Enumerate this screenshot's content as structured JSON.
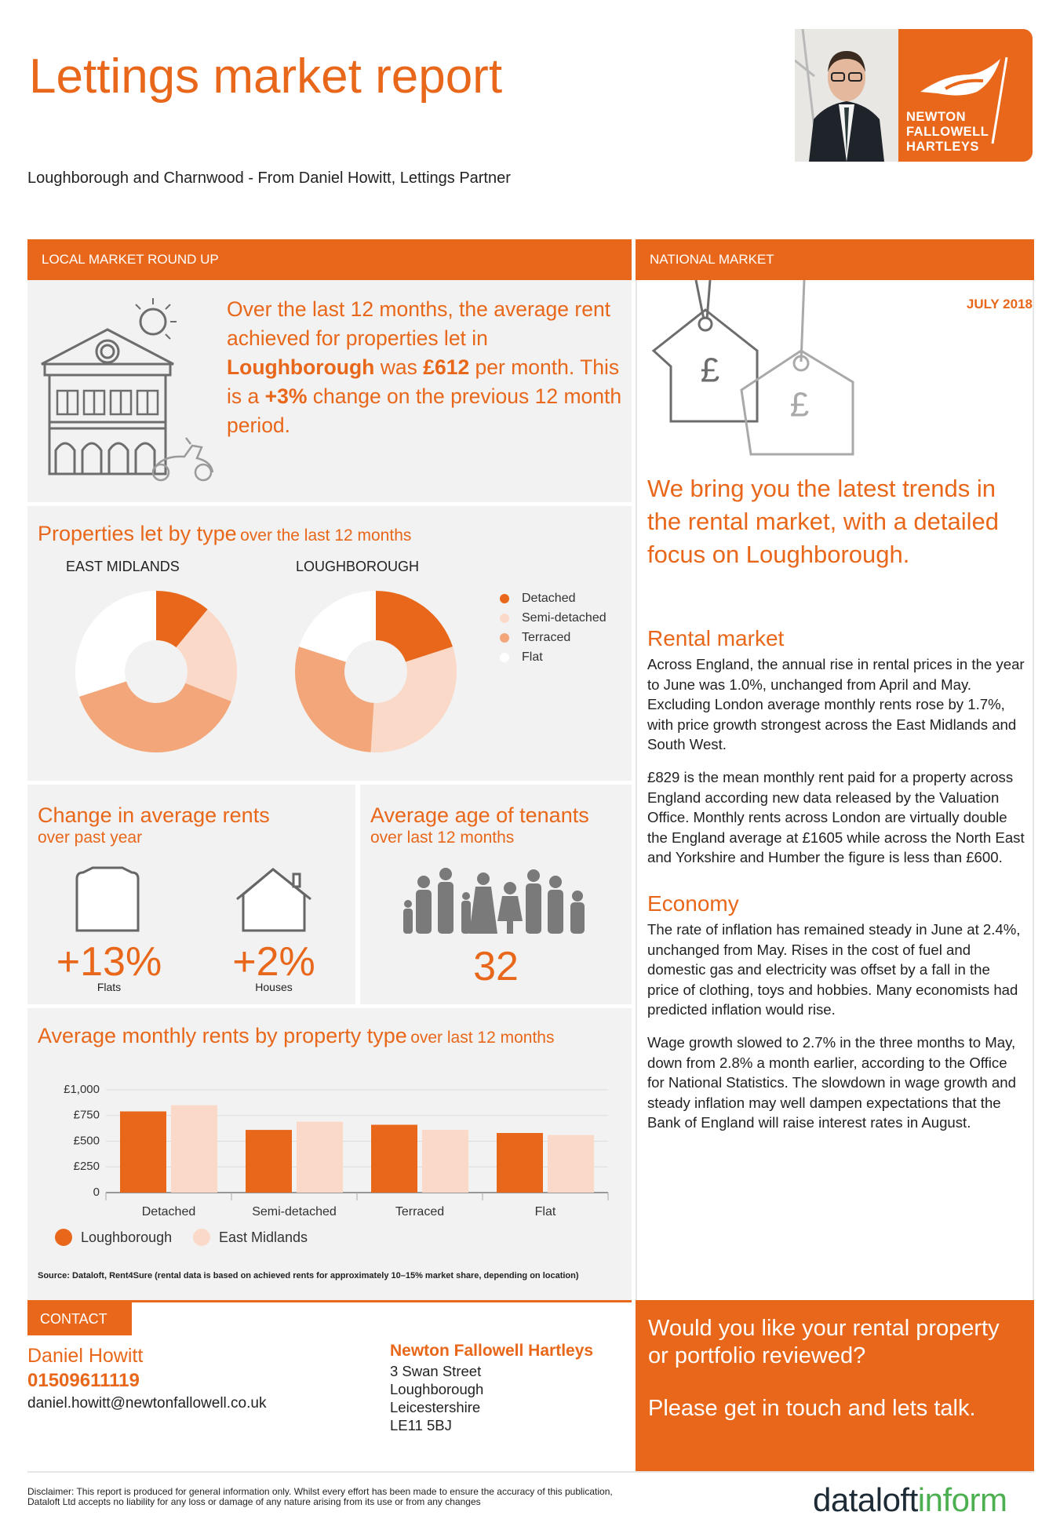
{
  "header": {
    "title": "Lettings market report",
    "subtitle": "Loughborough and Charnwood - From Daniel Howitt, Lettings Partner",
    "logo": [
      "NEWTON",
      "FALLOWELL",
      "HARTLEYS"
    ]
  },
  "local": {
    "header": "LOCAL MARKET ROUND UP",
    "intro": [
      {
        "text": "Over the last 12 months, the average rent achieved for properties let in "
      },
      {
        "text": "Loughborough",
        "bold": true
      },
      {
        "text": " was "
      },
      {
        "text": "£612",
        "bold": true
      },
      {
        "text": " per month. This is a "
      },
      {
        "text": "+3%",
        "bold": true
      },
      {
        "text": " change on the previous 12 month period."
      }
    ],
    "by_type": {
      "title": "Properties let by type",
      "subtitle": "over the last 12 months"
    },
    "change": {
      "title": "Change in average rents",
      "subtitle": "over past year",
      "items": [
        {
          "value": "+13%",
          "label": "Flats"
        },
        {
          "value": "+2%",
          "label": "Houses"
        }
      ]
    },
    "age": {
      "title": "Average age of tenants",
      "subtitle": "over last 12 months",
      "value": "32"
    },
    "source": "Source: Dataloft, Rent4Sure (rental data is based on achieved rents for approximately 10–15% market share, depending on location)"
  },
  "chart_data": [
    {
      "type": "pie",
      "title": "EAST MIDLANDS",
      "categories": [
        "Detached",
        "Semi-detached",
        "Terraced",
        "Flat"
      ],
      "values": [
        11,
        20,
        39,
        30
      ],
      "colors": [
        "#e8671a",
        "#fbd9c8",
        "#f2a679",
        "#ffffff"
      ]
    },
    {
      "type": "pie",
      "title": "LOUGHBOROUGH",
      "categories": [
        "Detached",
        "Semi-detached",
        "Terraced",
        "Flat"
      ],
      "values": [
        20,
        31,
        29,
        20
      ],
      "colors": [
        "#e8671a",
        "#fbd9c8",
        "#f2a679",
        "#ffffff"
      ]
    },
    {
      "type": "bar",
      "title": "Average monthly rents by property type",
      "subtitle": "over last 12 months",
      "categories": [
        "Detached",
        "Semi-detached",
        "Terraced",
        "Flat"
      ],
      "series": [
        {
          "name": "Loughborough",
          "color": "#e8671a",
          "values": [
            790,
            610,
            660,
            580
          ]
        },
        {
          "name": "East Midlands",
          "color": "#fbd9c8",
          "values": [
            850,
            690,
            610,
            560
          ]
        }
      ],
      "ylim": [
        0,
        1000
      ],
      "yticks": [
        0,
        {
          "value": 250,
          "label": "£250"
        },
        {
          "value": 500,
          "label": "£500"
        },
        {
          "value": 750,
          "label": "£750"
        },
        {
          "value": 1000,
          "label": "£1,000"
        }
      ],
      "grid": true
    }
  ],
  "national": {
    "header": "NATIONAL MARKET",
    "date": "JULY 2018",
    "headline": "We bring you the latest trends in the rental market, with a detailed focus on Loughborough.",
    "sections": [
      {
        "heading": "Rental market",
        "paragraphs": [
          "Across England, the annual rise in rental prices in the year to June was 1.0%, unchanged from April and May. Excluding London average monthly rents rose by 1.7%, with price growth strongest across the East Midlands and South West.",
          "£829 is the mean monthly rent paid for a property across England according new data released by the Valuation Office. Monthly rents across London are virtually double the England average at £1605 while across the North East and Yorkshire and Humber the figure is less than £600."
        ]
      },
      {
        "heading": "Economy",
        "paragraphs": [
          "The rate of inflation has remained steady in June at 2.4%, unchanged from May. Rises in the cost of fuel and domestic gas and electricity was offset by a fall in the price of clothing, toys and hobbies. Many economists had predicted inflation would rise.",
          "Wage growth slowed to 2.7% in the three months to May, down from 2.8% a month earlier, according to the Office for National Statistics. The slowdown in wage growth and steady inflation may well dampen expectations that the Bank of England will raise interest rates in August."
        ]
      }
    ]
  },
  "contact": {
    "label": "CONTACT",
    "name": "Daniel Howitt",
    "phone": "01509611119",
    "email": "daniel.howitt@newtonfallowell.co.uk",
    "company": "Newton Fallowell Hartleys",
    "address": [
      "3 Swan Street",
      "Loughborough",
      "Leicestershire",
      "LE11 5BJ"
    ]
  },
  "cta": [
    "Would you like your rental property or portfolio reviewed?",
    "Please get in touch and lets talk."
  ],
  "footer": {
    "disclaimer": "Disclaimer: This report is produced for general information only. Whilst every effort has been made to ensure the accuracy of this publication, Dataloft Ltd accepts no liability for any loss or damage of any nature arising from its use or from any changes",
    "brand": [
      "dataloft",
      "inform"
    ]
  }
}
